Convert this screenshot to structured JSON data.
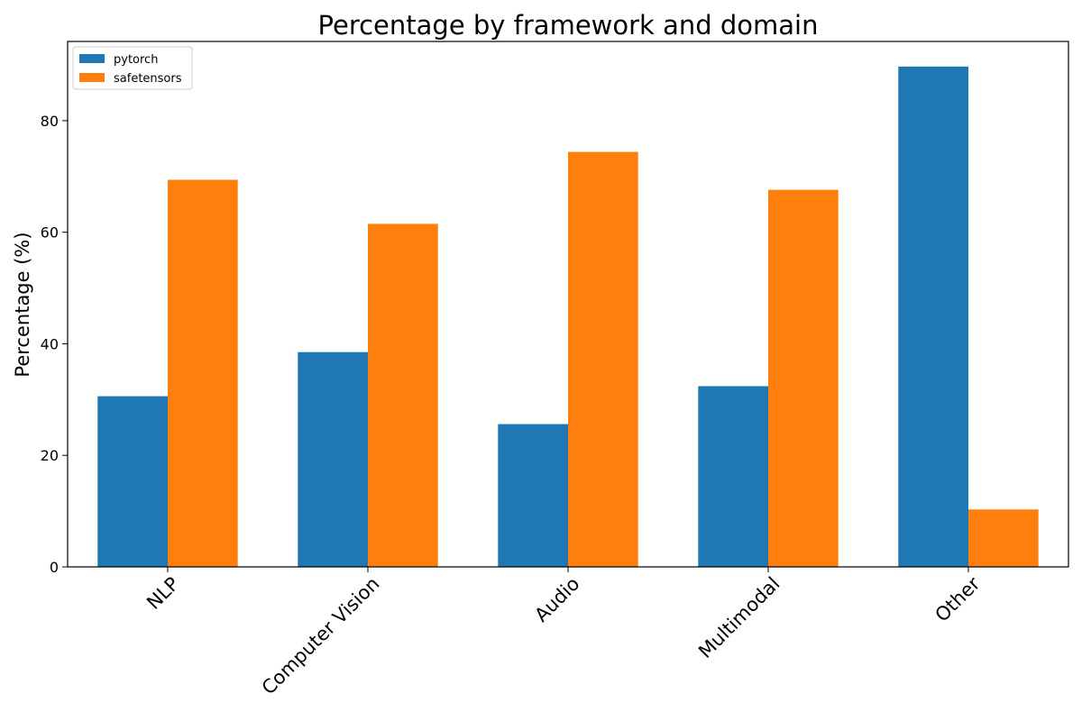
{
  "chart_data": {
    "type": "bar",
    "title": "Percentage by framework and domain",
    "xlabel": "",
    "ylabel": "Percentage (%)",
    "categories": [
      "NLP",
      "Computer Vision",
      "Audio",
      "Multimodal",
      "Other"
    ],
    "series": [
      {
        "name": "pytorch",
        "color": "#1f77b4",
        "values": [
          30.6,
          38.5,
          25.6,
          32.4,
          89.7
        ]
      },
      {
        "name": "safetensors",
        "color": "#ff7f0e",
        "values": [
          69.4,
          61.5,
          74.4,
          67.6,
          10.3
        ]
      }
    ],
    "ylim": [
      0,
      94.2
    ],
    "yticks": [
      "0",
      "20",
      "40",
      "60",
      "80"
    ],
    "xtick_rotation": 45,
    "legend_position": "top-left",
    "grid": false
  }
}
